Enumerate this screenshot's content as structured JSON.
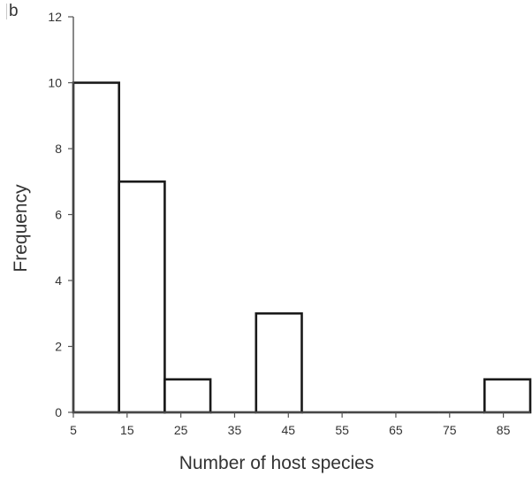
{
  "panel_label": "b",
  "chart_data": {
    "type": "bar",
    "title": "",
    "xlabel": "Number of host species",
    "ylabel": "Frequency",
    "categories": [
      "5–13",
      "13–22",
      "22–31",
      "31–39",
      "39–48",
      "48–56",
      "56–65",
      "65–73",
      "73–82",
      "82–90"
    ],
    "bins": [
      [
        5,
        13.5
      ],
      [
        13.5,
        22
      ],
      [
        22,
        30.5
      ],
      [
        30.5,
        39
      ],
      [
        39,
        47.5
      ],
      [
        47.5,
        56
      ],
      [
        56,
        64.5
      ],
      [
        64.5,
        73
      ],
      [
        73,
        81.5
      ],
      [
        81.5,
        90
      ]
    ],
    "values": [
      10,
      7,
      1,
      0,
      3,
      0,
      0,
      0,
      0,
      1
    ],
    "xticks": [
      5,
      15,
      25,
      35,
      45,
      55,
      65,
      75,
      85
    ],
    "xtick_labels": [
      "5",
      "15",
      "25",
      "35",
      "45",
      "55",
      "65",
      "75",
      "85"
    ],
    "yticks": [
      0,
      2,
      4,
      6,
      8,
      10,
      12
    ],
    "ytick_labels": [
      "0",
      "2",
      "4",
      "6",
      "8",
      "10",
      "12"
    ],
    "xlim": [
      5,
      90
    ],
    "ylim": [
      0,
      12
    ],
    "grid": false,
    "legend": "none",
    "colors": {
      "bar_fill": "#ffffff",
      "bar_stroke": "#1a1a1a",
      "axis": "#555555",
      "text": "#333333"
    }
  }
}
